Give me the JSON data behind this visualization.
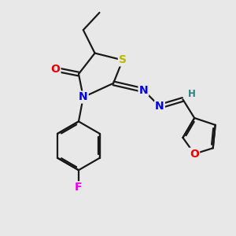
{
  "background_color": "#e8e8e8",
  "bond_color": "#1a1a1a",
  "atom_colors": {
    "S": "#b8b800",
    "N": "#0000ee",
    "O_carbonyl": "#ee0000",
    "O_furan": "#ee0000",
    "F": "#ee00ee",
    "H": "#2a8080",
    "C": "#1a1a1a"
  },
  "figsize": [
    3.0,
    3.0
  ],
  "dpi": 100
}
